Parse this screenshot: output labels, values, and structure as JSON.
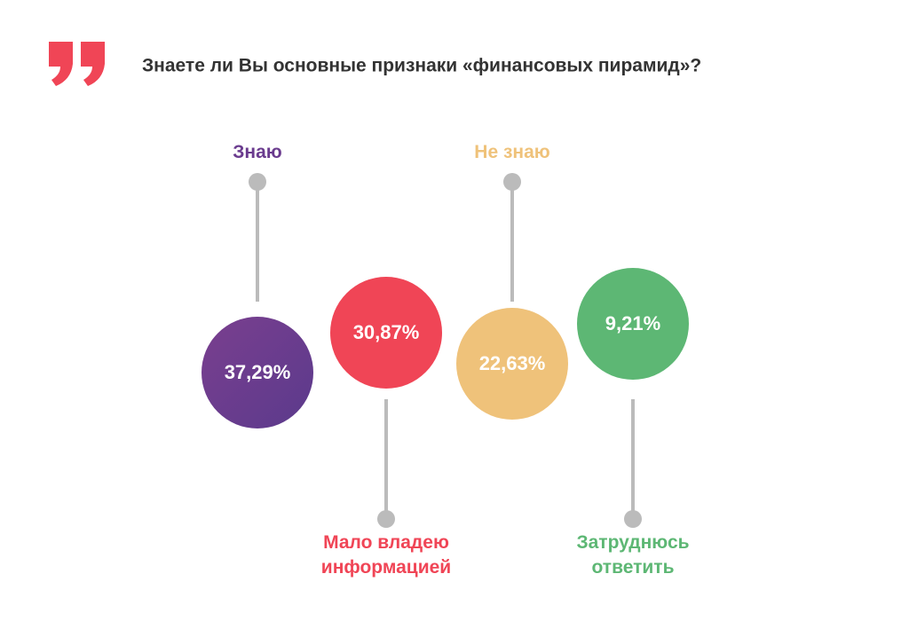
{
  "chart_data": {
    "type": "circles",
    "title": "Знаете ли Вы основные признаки «финансовых пирамид»?",
    "categories": [
      "Знаю",
      "Мало владею информацией",
      "Не знаю",
      "Затруднюсь ответить"
    ],
    "values": [
      37.29,
      30.87,
      22.63,
      9.21
    ],
    "value_labels": [
      "37,29%",
      "30,87%",
      "22,63%",
      "9,21%"
    ],
    "colors": [
      "#6a3b8e",
      "#f04556",
      "#efc27a",
      "#5db774"
    ]
  }
}
